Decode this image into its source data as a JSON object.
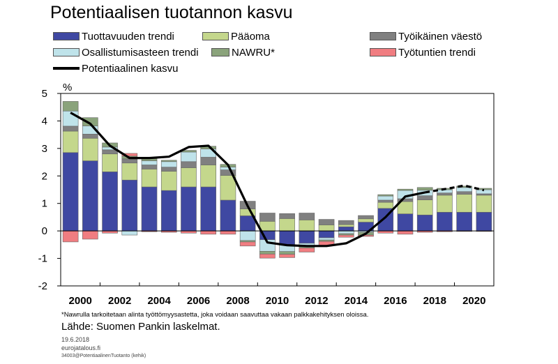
{
  "chart_data": {
    "type": "bar",
    "subtype": "stacked",
    "title": "Potentiaalisen tuotannon kasvu",
    "ylabel": "%",
    "ylim": [
      -2,
      5
    ],
    "yticks": [
      "5",
      "4",
      "3",
      "2",
      "1",
      "0",
      "-1",
      "-2"
    ],
    "categories": [
      1999,
      2000,
      2001,
      2002,
      2003,
      2004,
      2005,
      2006,
      2007,
      2008,
      2009,
      2010,
      2011,
      2012,
      2013,
      2014,
      2015,
      2016,
      2017,
      2018,
      2019,
      2020
    ],
    "xtick_labels": [
      "2000",
      "2002",
      "2004",
      "2006",
      "2008",
      "2010",
      "2012",
      "2014",
      "2016",
      "2018",
      "2020"
    ],
    "series": [
      {
        "name": "Tuottavuuden trendi",
        "color": "#3f48a2",
        "values": [
          2.85,
          2.55,
          2.15,
          1.85,
          1.6,
          1.47,
          1.6,
          1.6,
          1.12,
          0.55,
          -0.32,
          -0.5,
          -0.45,
          -0.25,
          0.15,
          0.32,
          0.82,
          0.62,
          0.58,
          0.68,
          0.68,
          0.68
        ]
      },
      {
        "name": "Pääoma",
        "color": "#c4d78c",
        "values": [
          0.78,
          0.82,
          0.65,
          0.62,
          0.65,
          0.7,
          0.7,
          0.8,
          0.9,
          0.25,
          0.35,
          0.45,
          0.4,
          0.22,
          0.08,
          0.12,
          0.22,
          0.45,
          0.55,
          0.62,
          0.65,
          0.62
        ]
      },
      {
        "name": "Työikäinen väestö",
        "color": "#808080",
        "values": [
          0.18,
          0.15,
          0.15,
          0.15,
          0.15,
          0.15,
          0.22,
          0.28,
          0.2,
          0.28,
          0.3,
          0.18,
          0.25,
          0.2,
          0.15,
          0.12,
          0.08,
          0.1,
          0.15,
          0.08,
          0.1,
          0.05
        ]
      },
      {
        "name": "Osallistumisasteen trendi",
        "color": "#bfe3ea",
        "values": [
          0.55,
          0.3,
          0.1,
          -0.15,
          0.15,
          0.2,
          0.35,
          0.3,
          0.1,
          -0.35,
          -0.42,
          -0.25,
          -0.12,
          -0.08,
          -0.1,
          -0.05,
          0.15,
          0.3,
          0.2,
          0.12,
          0.15,
          0.15
        ]
      },
      {
        "name": "NAWRU*",
        "color": "#8aa37b",
        "values": [
          0.35,
          0.3,
          0.15,
          0.1,
          0.08,
          0.05,
          0.06,
          0.1,
          0.1,
          -0.05,
          -0.1,
          -0.1,
          -0.05,
          -0.05,
          -0.05,
          -0.1,
          0.05,
          0.05,
          0.1,
          0.05,
          0.05,
          0.05
        ]
      },
      {
        "name": "Työtuntien trendi",
        "color": "#f07d81",
        "values": [
          -0.4,
          -0.3,
          -0.08,
          0.1,
          -0.03,
          -0.05,
          -0.08,
          -0.12,
          -0.12,
          -0.15,
          -0.15,
          -0.12,
          -0.15,
          -0.15,
          -0.08,
          -0.05,
          -0.08,
          -0.12,
          -0.05,
          -0.03,
          -0.02,
          -0.02
        ]
      }
    ],
    "line": {
      "name": "Potentiaalinen kasvu",
      "color": "#000000",
      "values": [
        4.3,
        3.9,
        3.1,
        2.65,
        2.65,
        2.7,
        3.05,
        3.1,
        2.4,
        0.9,
        -0.42,
        -0.52,
        -0.55,
        -0.55,
        -0.45,
        -0.1,
        0.5,
        1.25,
        1.4,
        1.52,
        1.65,
        1.48
      ],
      "dashed_from": 2017
    }
  },
  "legend": [
    {
      "label": "Tuottavuuden trendi",
      "type": "swatch",
      "color": "#3f48a2"
    },
    {
      "label": "Pääoma",
      "type": "swatch",
      "color": "#c4d78c"
    },
    {
      "label": "Työikäinen väestö",
      "type": "swatch",
      "color": "#808080"
    },
    {
      "label": "Osallistumisasteen trendi",
      "type": "swatch",
      "color": "#bfe3ea"
    },
    {
      "label": "NAWRU*",
      "type": "swatch",
      "color": "#8aa37b"
    },
    {
      "label": "Työtuntien trendi",
      "type": "swatch",
      "color": "#f07d81"
    },
    {
      "label": "Potentiaalinen kasvu",
      "type": "line",
      "color": "#000000"
    }
  ],
  "footnote": "*Nawrulla tarkoitetaan alinta työttömyysastetta, joka voidaan saavuttaa vakaan palkkakehityksen oloissa.",
  "source": "Lähde: Suomen Pankin laskelmat.",
  "date": "19.6.2018",
  "site": "eurojatalous.fi",
  "code": "34003@PotentiaalinenTuotanto (kehik)"
}
